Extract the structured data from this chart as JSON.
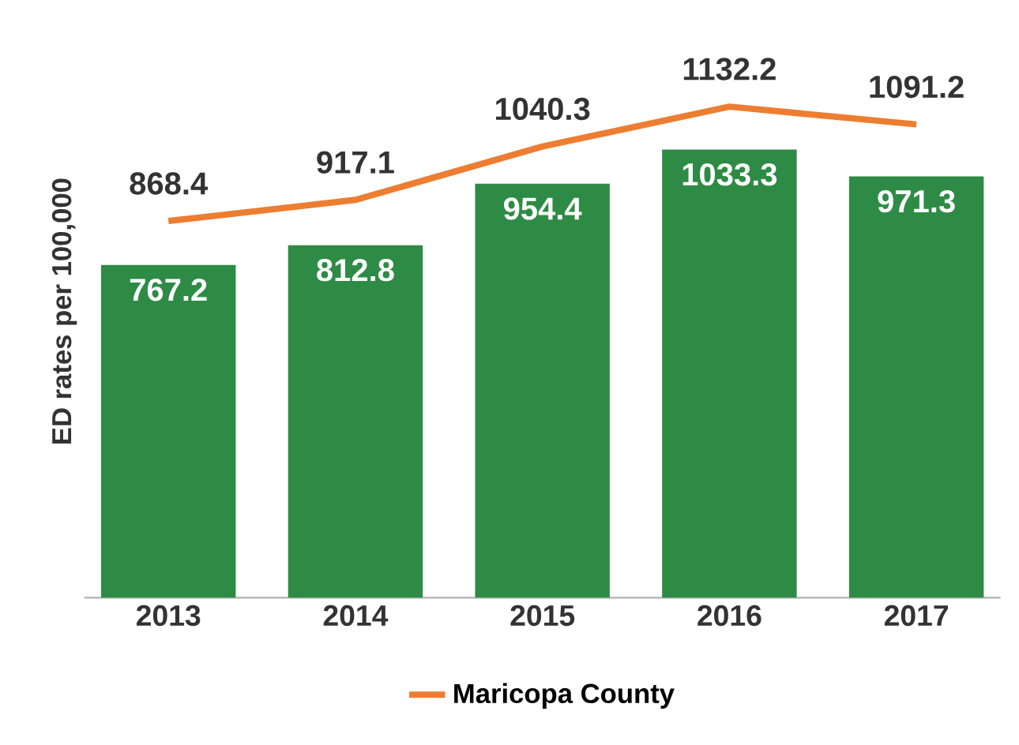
{
  "chart_data": {
    "type": "bar",
    "ylabel": "ED rates per 100,000",
    "categories": [
      "2013",
      "2014",
      "2015",
      "2016",
      "2017"
    ],
    "series": [
      {
        "color": "#2e8b45",
        "values": [
          767.2,
          812.8,
          954.4,
          1033.3,
          971.3
        ]
      },
      {
        "type": "line",
        "name": "Maricopa County",
        "color": "#ed7d31",
        "values": [
          868.4,
          917.1,
          1040.3,
          1132.2,
          1091.2
        ]
      }
    ],
    "data_labels": true,
    "legend": "bottom",
    "marker": "none",
    "line_style": "solid"
  }
}
